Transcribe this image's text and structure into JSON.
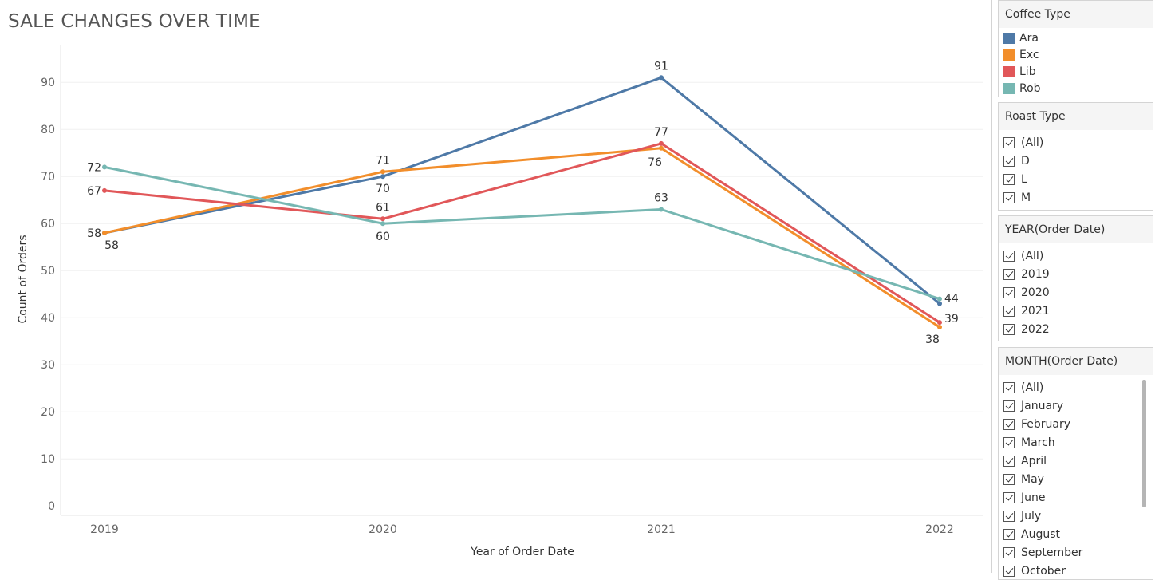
{
  "chart_data": {
    "type": "line",
    "title": "SALE CHANGES OVER TIME",
    "xlabel": "Year of Order Date",
    "ylabel": "Count of Orders",
    "categories": [
      "2019",
      "2020",
      "2021",
      "2022"
    ],
    "ylim": [
      -2,
      98
    ],
    "yticks": [
      0,
      10,
      20,
      30,
      40,
      50,
      60,
      70,
      80,
      90
    ],
    "grid": true,
    "series": [
      {
        "name": "Ara",
        "color": "#4e79a7",
        "values": [
          58,
          70,
          91,
          43
        ],
        "labels": [
          "58",
          "70",
          "91",
          ""
        ]
      },
      {
        "name": "Exc",
        "color": "#f28e2b",
        "values": [
          58,
          71,
          76,
          38
        ],
        "labels": [
          "",
          "71",
          "76",
          "38"
        ]
      },
      {
        "name": "Lib",
        "color": "#e15759",
        "values": [
          67,
          61,
          77,
          39
        ],
        "labels": [
          "67",
          "61",
          "77",
          "39"
        ]
      },
      {
        "name": "Rob",
        "color": "#76b7b2",
        "values": [
          72,
          60,
          63,
          44
        ],
        "labels": [
          "72",
          "60",
          "63",
          "44"
        ]
      }
    ]
  },
  "legend": {
    "title": "Coffee Type",
    "items": [
      {
        "label": "Ara",
        "color": "#4e79a7"
      },
      {
        "label": "Exc",
        "color": "#f28e2b"
      },
      {
        "label": "Lib",
        "color": "#e15759"
      },
      {
        "label": "Rob",
        "color": "#76b7b2"
      }
    ]
  },
  "filters": {
    "roast": {
      "title": "Roast Type",
      "items": [
        "(All)",
        "D",
        "L",
        "M"
      ]
    },
    "year": {
      "title": "YEAR(Order Date)",
      "items": [
        "(All)",
        "2019",
        "2020",
        "2021",
        "2022"
      ]
    },
    "month": {
      "title": "MONTH(Order Date)",
      "items": [
        "(All)",
        "January",
        "February",
        "March",
        "April",
        "May",
        "June",
        "July",
        "August",
        "September",
        "October"
      ]
    }
  }
}
